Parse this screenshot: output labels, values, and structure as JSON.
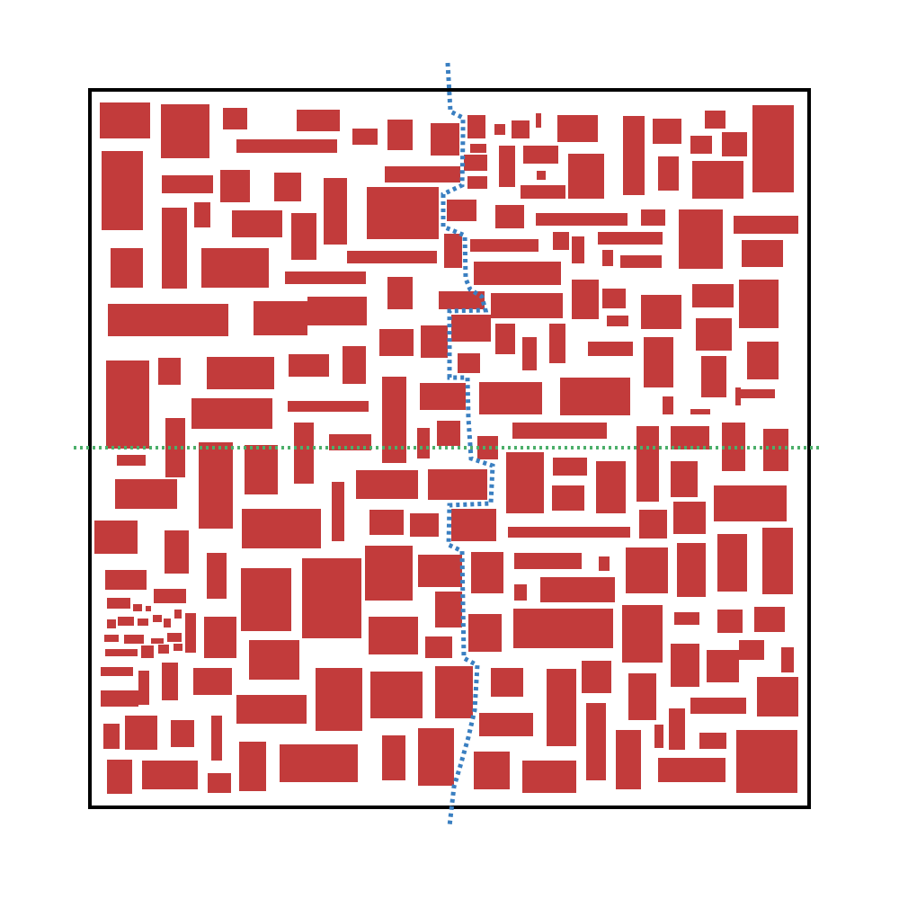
{
  "diagram": {
    "type": "rectangle-packing-with-cut-lines",
    "colors": {
      "background": "#ffffff",
      "block_fill": "#c23b3b",
      "border": "#000000",
      "vertical_cut": "#3a7fc1",
      "horizontal_cut": "#4caf6a"
    },
    "lines": [
      {
        "name": "vertical-cut-line",
        "orientation": "vertical",
        "style": "dotted",
        "color_key": "vertical_cut"
      },
      {
        "name": "horizontal-cut-line",
        "orientation": "horizontal",
        "style": "dotted",
        "color_key": "horizontal_cut"
      }
    ]
  }
}
